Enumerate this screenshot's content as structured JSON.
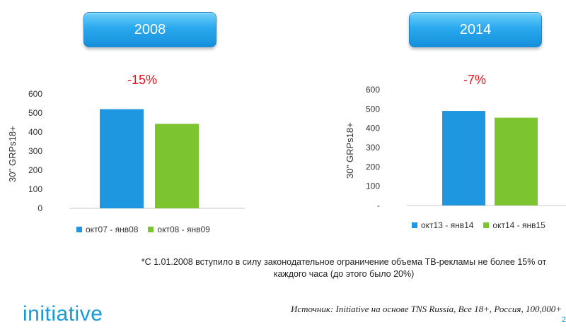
{
  "boxes": {
    "left": "2008",
    "right": "2014"
  },
  "changes": {
    "left": "-15%",
    "right": "-7%"
  },
  "colors": {
    "blue": "#1e96e0",
    "green": "#7cc531",
    "red": "#e3141b",
    "accent": "#1b9ad8"
  },
  "chart_data": [
    {
      "type": "bar",
      "title": "2008",
      "annotation": "-15%",
      "ylabel": "30'' GRPs18+",
      "ylim": [
        0,
        600
      ],
      "yticks": [
        "0",
        "100",
        "200",
        "300",
        "400",
        "500",
        "600"
      ],
      "grid": false,
      "legend_position": "bottom",
      "series": [
        {
          "name": "окт07 - янв08",
          "values": [
            520
          ]
        },
        {
          "name": "окт08 - янв09",
          "values": [
            443
          ]
        }
      ]
    },
    {
      "type": "bar",
      "title": "2014",
      "annotation": "-7%",
      "ylabel": "30'' GRPs18+",
      "ylim": [
        0,
        600
      ],
      "yticks": [
        "-",
        "100",
        "200",
        "300",
        "400",
        "500",
        "600"
      ],
      "grid": false,
      "legend_position": "bottom",
      "series": [
        {
          "name": "окт13 - янв14",
          "values": [
            490
          ]
        },
        {
          "name": "окт14 - янв15",
          "values": [
            455
          ]
        }
      ]
    }
  ],
  "footnote": "*С 1.01.2008 вступило в силу законодательное ограничение объема ТВ-рекламы не более 15% от каждого часа (до этого было 20%)",
  "source": "Источник: Initiative на основе TNS Russia, Все 18+, Россия, 100,000+",
  "logo": "initiative",
  "page_number": "2"
}
